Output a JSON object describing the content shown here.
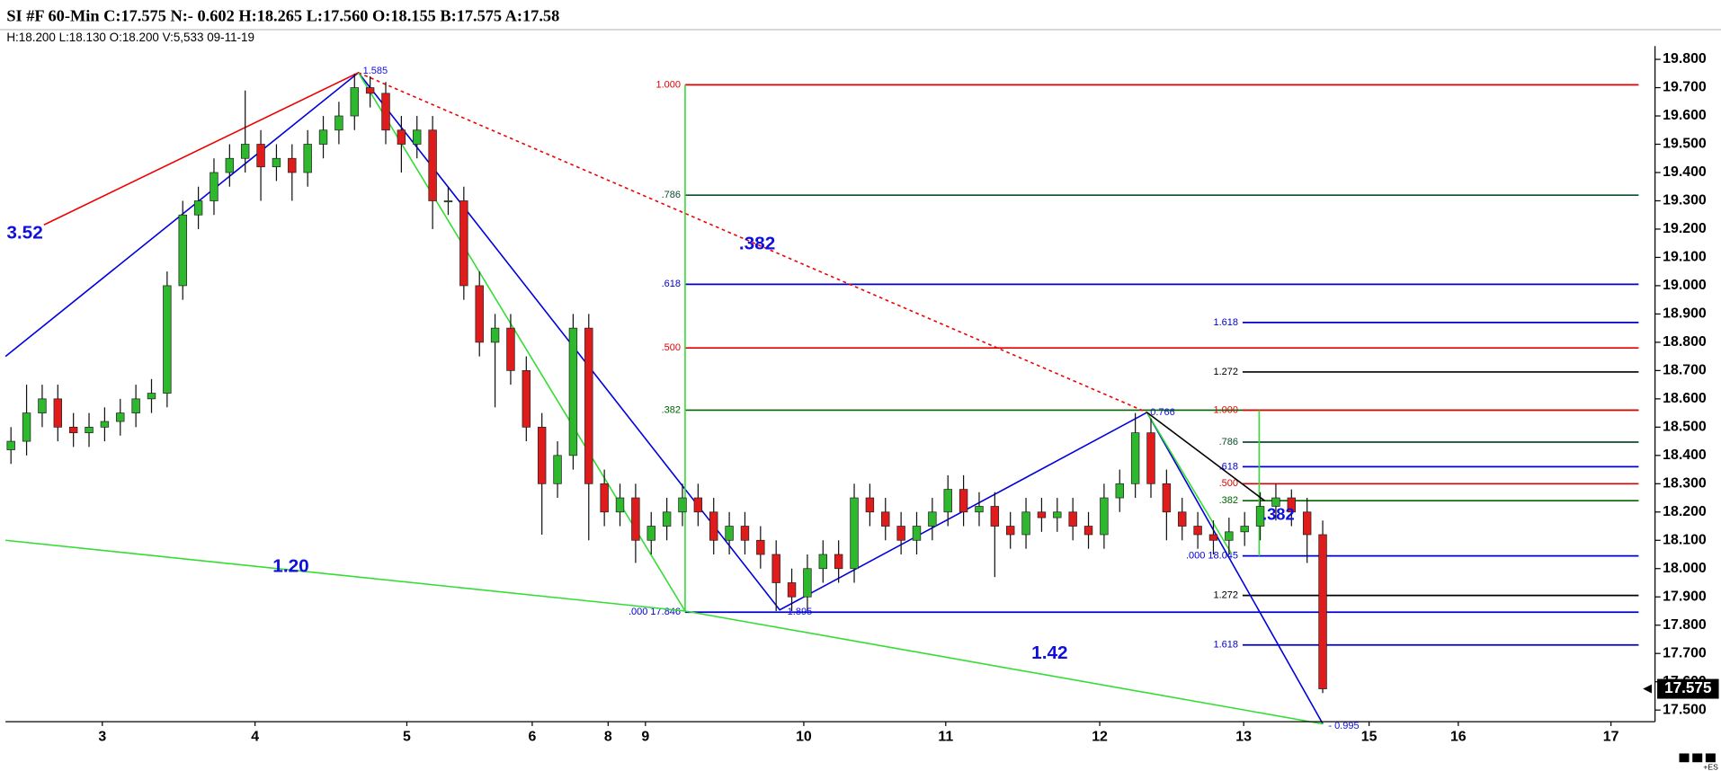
{
  "chart_data": {
    "type": "candlestick",
    "title": "SI #F 60-Min C:17.575 N:- 0.602 H:18.265 L:17.560 O:18.155 B:17.575 A:17.58",
    "subtitle": "H:18.200  L:18.130  O:18.200  V:5,533  09-11-19",
    "x": [
      0,
      1,
      2,
      3,
      4,
      5,
      6,
      7,
      8,
      9,
      10,
      11,
      12,
      13,
      14,
      15,
      16,
      17,
      18,
      19,
      20,
      21,
      22,
      23,
      24,
      25,
      26,
      27,
      28,
      29,
      30,
      31,
      32,
      33,
      34,
      35,
      36,
      37,
      38,
      39,
      40,
      41,
      42,
      43,
      44,
      45,
      46,
      47,
      48,
      49,
      50,
      51,
      52,
      53,
      54,
      55,
      56,
      57,
      58,
      59,
      60,
      61,
      62,
      63,
      64,
      65,
      66,
      67,
      68,
      69,
      70,
      71,
      72,
      73,
      74,
      75,
      76,
      77,
      78,
      79,
      80,
      81,
      82,
      83,
      84
    ],
    "open": [
      18.42,
      18.45,
      18.55,
      18.6,
      18.5,
      18.48,
      18.5,
      18.52,
      18.55,
      18.6,
      18.62,
      19.0,
      19.25,
      19.3,
      19.4,
      19.45,
      19.5,
      19.42,
      19.45,
      19.4,
      19.5,
      19.55,
      19.6,
      19.7,
      19.68,
      19.55,
      19.5,
      19.55,
      19.3,
      19.3,
      19.0,
      18.8,
      18.85,
      18.7,
      18.5,
      18.3,
      18.4,
      18.85,
      18.3,
      18.2,
      18.25,
      18.1,
      18.15,
      18.2,
      18.25,
      18.2,
      18.1,
      18.15,
      18.1,
      18.05,
      17.95,
      17.9,
      18.0,
      18.05,
      18.0,
      18.25,
      18.2,
      18.15,
      18.1,
      18.15,
      18.2,
      18.28,
      18.2,
      18.22,
      18.15,
      18.12,
      18.2,
      18.18,
      18.2,
      18.15,
      18.12,
      18.25,
      18.3,
      18.48,
      18.3,
      18.2,
      18.15,
      18.12,
      18.1,
      18.13,
      18.15,
      18.22,
      18.25,
      18.2,
      18.12
    ],
    "high": [
      18.5,
      18.65,
      18.65,
      18.65,
      18.55,
      18.55,
      18.57,
      18.6,
      18.65,
      18.67,
      19.05,
      19.3,
      19.35,
      19.45,
      19.5,
      19.69,
      19.55,
      19.5,
      19.5,
      19.55,
      19.6,
      19.65,
      19.75,
      19.74,
      19.72,
      19.6,
      19.6,
      19.6,
      19.35,
      19.35,
      19.05,
      18.9,
      18.9,
      18.75,
      18.55,
      18.45,
      18.9,
      18.9,
      18.35,
      18.3,
      18.3,
      18.2,
      18.25,
      18.3,
      18.3,
      18.25,
      18.2,
      18.2,
      18.15,
      18.1,
      18.0,
      18.05,
      18.1,
      18.1,
      18.3,
      18.3,
      18.25,
      18.2,
      18.2,
      18.25,
      18.33,
      18.33,
      18.27,
      18.27,
      18.2,
      18.25,
      18.25,
      18.25,
      18.25,
      18.2,
      18.3,
      18.35,
      18.55,
      18.53,
      18.35,
      18.25,
      18.2,
      18.17,
      18.18,
      18.2,
      18.27,
      18.3,
      18.28,
      18.25,
      18.17
    ],
    "low": [
      18.37,
      18.4,
      18.5,
      18.45,
      18.43,
      18.43,
      18.45,
      18.47,
      18.5,
      18.55,
      18.57,
      18.95,
      19.2,
      19.25,
      19.35,
      19.4,
      19.3,
      19.37,
      19.3,
      19.35,
      19.45,
      19.5,
      19.55,
      19.63,
      19.5,
      19.4,
      19.45,
      19.2,
      19.25,
      18.95,
      18.75,
      18.57,
      18.65,
      18.45,
      18.12,
      18.25,
      18.35,
      18.1,
      18.15,
      18.15,
      18.02,
      18.05,
      18.1,
      18.15,
      18.15,
      18.05,
      18.05,
      18.05,
      18.0,
      17.85,
      17.85,
      17.85,
      17.95,
      17.95,
      17.95,
      18.15,
      18.1,
      18.05,
      18.05,
      18.1,
      18.15,
      18.15,
      18.15,
      17.97,
      18.07,
      18.07,
      18.13,
      18.13,
      18.1,
      18.07,
      18.07,
      18.2,
      18.25,
      18.25,
      18.1,
      18.1,
      18.07,
      18.05,
      18.05,
      18.08,
      18.1,
      18.17,
      18.15,
      18.02,
      17.56
    ],
    "close": [
      18.45,
      18.55,
      18.6,
      18.5,
      18.48,
      18.5,
      18.52,
      18.55,
      18.6,
      18.62,
      19.0,
      19.25,
      19.3,
      19.4,
      19.45,
      19.5,
      19.42,
      19.45,
      19.4,
      19.5,
      19.55,
      19.6,
      19.7,
      19.68,
      19.55,
      19.5,
      19.55,
      19.3,
      19.3,
      19.0,
      18.8,
      18.85,
      18.7,
      18.5,
      18.3,
      18.4,
      18.85,
      18.3,
      18.2,
      18.25,
      18.1,
      18.15,
      18.2,
      18.25,
      18.2,
      18.1,
      18.15,
      18.1,
      18.05,
      17.95,
      17.9,
      18.0,
      18.05,
      18.0,
      18.25,
      18.2,
      18.15,
      18.1,
      18.15,
      18.2,
      18.28,
      18.2,
      18.22,
      18.15,
      18.12,
      18.2,
      18.18,
      18.2,
      18.15,
      18.12,
      18.25,
      18.3,
      18.48,
      18.3,
      18.2,
      18.15,
      18.12,
      18.1,
      18.13,
      18.15,
      18.22,
      18.25,
      18.2,
      18.12,
      17.575
    ],
    "up_color": "#2db82d",
    "down_color": "#e01b1b",
    "xlim": [
      -0.35,
      105.28
    ],
    "ylim": [
      17.459,
      19.847
    ],
    "xticks": [
      {
        "value": 5.85,
        "label": "3"
      },
      {
        "value": 15.63,
        "label": "4"
      },
      {
        "value": 25.35,
        "label": "5"
      },
      {
        "value": 33.38,
        "label": "6"
      },
      {
        "value": 38.24,
        "label": "8"
      },
      {
        "value": 40.63,
        "label": "9"
      },
      {
        "value": 50.77,
        "label": "10"
      },
      {
        "value": 59.86,
        "label": "11"
      },
      {
        "value": 69.72,
        "label": "12"
      },
      {
        "value": 78.94,
        "label": "13"
      },
      {
        "value": 86.97,
        "label": "15"
      },
      {
        "value": 92.68,
        "label": "16"
      },
      {
        "value": 102.46,
        "label": "17"
      }
    ],
    "yticks": [
      {
        "value": 17.5,
        "label": "17.500"
      },
      {
        "value": 17.6,
        "label": "17.600"
      },
      {
        "value": 17.7,
        "label": "17.700"
      },
      {
        "value": 17.8,
        "label": "17.800"
      },
      {
        "value": 17.9,
        "label": "17.900"
      },
      {
        "value": 18.0,
        "label": "18.000"
      },
      {
        "value": 18.1,
        "label": "18.100"
      },
      {
        "value": 18.2,
        "label": "18.200"
      },
      {
        "value": 18.3,
        "label": "18.300"
      },
      {
        "value": 18.4,
        "label": "18.400"
      },
      {
        "value": 18.5,
        "label": "18.500"
      },
      {
        "value": 18.6,
        "label": "18.600"
      },
      {
        "value": 18.7,
        "label": "18.700"
      },
      {
        "value": 18.8,
        "label": "18.800"
      },
      {
        "value": 18.9,
        "label": "18.900"
      },
      {
        "value": 19.0,
        "label": "19.000"
      },
      {
        "value": 19.1,
        "label": "19.100"
      },
      {
        "value": 19.2,
        "label": "19.200"
      },
      {
        "value": 19.3,
        "label": "19.300"
      },
      {
        "value": 19.4,
        "label": "19.400"
      },
      {
        "value": 19.5,
        "label": "19.500"
      },
      {
        "value": 19.6,
        "label": "19.600"
      },
      {
        "value": 19.7,
        "label": "19.700"
      },
      {
        "value": 19.8,
        "label": "19.800"
      }
    ],
    "last_price": 17.575,
    "levels": [
      {
        "label": "1.000",
        "price": 19.71,
        "x0": 43.17,
        "x1": 104.23,
        "color": "#e00000"
      },
      {
        "label": ".786",
        "price": 19.32,
        "x0": 43.17,
        "x1": 104.23,
        "color": "#0b4d2e"
      },
      {
        "label": ".618",
        "price": 19.005,
        "x0": 43.17,
        "x1": 104.23,
        "color": "#0000cc"
      },
      {
        "label": ".500",
        "price": 18.78,
        "x0": 43.17,
        "x1": 104.23,
        "color": "#e00000"
      },
      {
        "label": ".382",
        "price": 18.56,
        "x0": 43.17,
        "x1": 104.23,
        "color": "#006400"
      },
      {
        "label": ".000 17.846",
        "price": 17.846,
        "x0": 43.17,
        "x1": 104.23,
        "color": "#0000cc"
      },
      {
        "label": "1.618",
        "price": 18.87,
        "x0": 78.87,
        "x1": 104.23,
        "color": "#0000cc"
      },
      {
        "label": "1.272",
        "price": 18.695,
        "x0": 78.87,
        "x1": 104.23,
        "color": "#000000"
      },
      {
        "label": "1.000",
        "price": 18.56,
        "x0": 78.87,
        "x1": 104.23,
        "color": "#e00000"
      },
      {
        "label": ".786",
        "price": 18.447,
        "x0": 78.87,
        "x1": 104.23,
        "color": "#0b4d2e"
      },
      {
        "label": ".618",
        "price": 18.36,
        "x0": 78.87,
        "x1": 104.23,
        "color": "#0000cc"
      },
      {
        "label": ".500",
        "price": 18.3,
        "x0": 78.87,
        "x1": 104.23,
        "color": "#e00000"
      },
      {
        "label": ".382",
        "price": 18.24,
        "x0": 78.87,
        "x1": 104.23,
        "color": "#006400"
      },
      {
        "label": ".000 18.045",
        "price": 18.045,
        "x0": 78.87,
        "x1": 104.23,
        "color": "#0000cc"
      },
      {
        "label": "1.272",
        "price": 17.905,
        "x0": 78.87,
        "x1": 104.23,
        "color": "#000000"
      },
      {
        "label": "1.618",
        "price": 17.73,
        "x0": 78.87,
        "x1": 104.23,
        "color": "#0000cc"
      }
    ],
    "lines": [
      {
        "x": [
          -0.35,
          22.25,
          49.23,
          72.75,
          84.01
        ],
        "y": [
          18.75,
          19.753,
          17.854,
          18.552,
          17.451
        ],
        "color": "#0000dd",
        "dashed": false
      },
      {
        "x": [
          2.11,
          22.25
        ],
        "y": [
          19.215,
          19.753
        ],
        "color": "#ee0000",
        "dashed": false
      },
      {
        "x": [
          22.25,
          72.75
        ],
        "y": [
          19.753,
          18.552
        ],
        "color": "#ee0000",
        "dashed": true
      },
      {
        "x": [
          22.25,
          43.17
        ],
        "y": [
          19.753,
          17.85
        ],
        "color": "#33dd33",
        "dashed": false
      },
      {
        "x": [
          72.75,
          78.17
        ],
        "y": [
          18.552,
          18.052
        ],
        "color": "#33dd33",
        "dashed": false
      },
      {
        "x": [
          -0.35,
          43.17,
          84.01
        ],
        "y": [
          18.1,
          17.85,
          17.451
        ],
        "color": "#33dd33",
        "dashed": false
      },
      {
        "x": [
          43.17,
          43.17
        ],
        "y": [
          19.71,
          17.846
        ],
        "color": "#33dd33",
        "dashed": false
      },
      {
        "x": [
          79.93,
          79.93
        ],
        "y": [
          18.56,
          18.045
        ],
        "color": "#33dd33",
        "dashed": false
      },
      {
        "x": [
          72.75,
          80.28
        ],
        "y": [
          18.552,
          18.24
        ],
        "color": "#000000",
        "dashed": false
      }
    ],
    "annotations": [
      "3.52",
      ".382",
      "1.20",
      "1.42",
      ".382",
      "1.585",
      "1.895",
      "- 0.995",
      "0.766"
    ],
    "footer_note": "+ES"
  }
}
